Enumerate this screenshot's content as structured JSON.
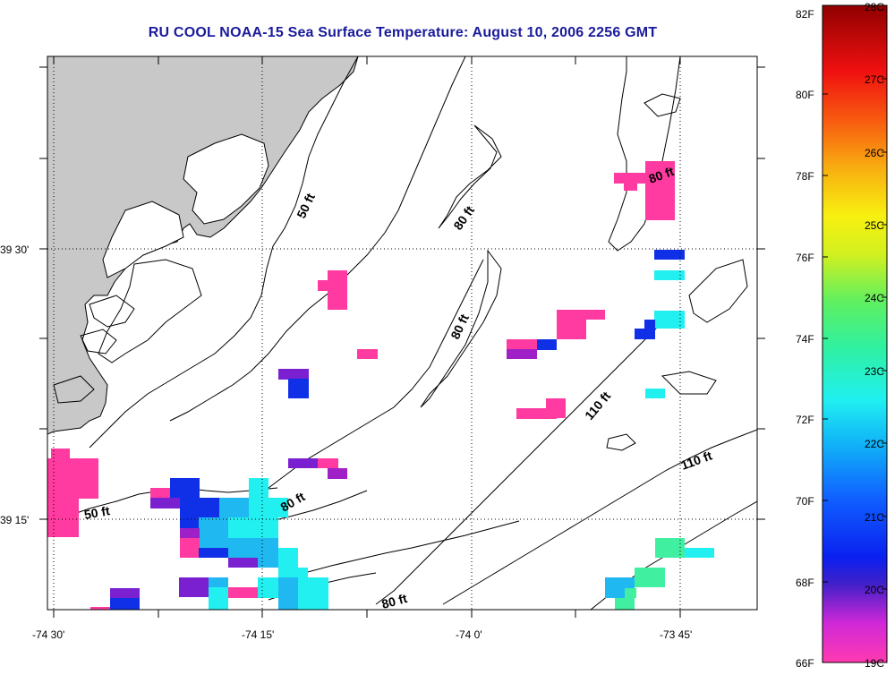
{
  "title": "RU COOL  NOAA-15  Sea Surface Temperature:  August 10, 2006 2256 GMT",
  "axes": {
    "x_ticks": [
      "-74 30'",
      "-74 15'",
      "-74 0'",
      "-73 45'"
    ],
    "y_ticks": [
      "39 30'",
      "39 15'"
    ]
  },
  "contour_labels": [
    "50 ft",
    "80 ft",
    "80 ft",
    "80 ft",
    "110 ft",
    "110 ft",
    "50 ft",
    "80 ft",
    "80 ft"
  ],
  "colorbar": {
    "fahrenheit": [
      "82F",
      "80F",
      "78F",
      "76F",
      "74F",
      "72F",
      "70F",
      "68F",
      "66F"
    ],
    "celsius": [
      "28C",
      "27C",
      "26C",
      "25C",
      "24C",
      "23C",
      "22C",
      "21C",
      "20C",
      "19C"
    ]
  },
  "colors": {
    "title": "#1a1a9c",
    "land": "#c8c8c8",
    "sst_19c": "#ff3aa0",
    "sst_20c": "#1030e8",
    "sst_21c": "#20b8f0",
    "sst_22c": "#22f0f0",
    "sst_purple": "#8a1ec8",
    "sst_green": "#40f0a0"
  }
}
